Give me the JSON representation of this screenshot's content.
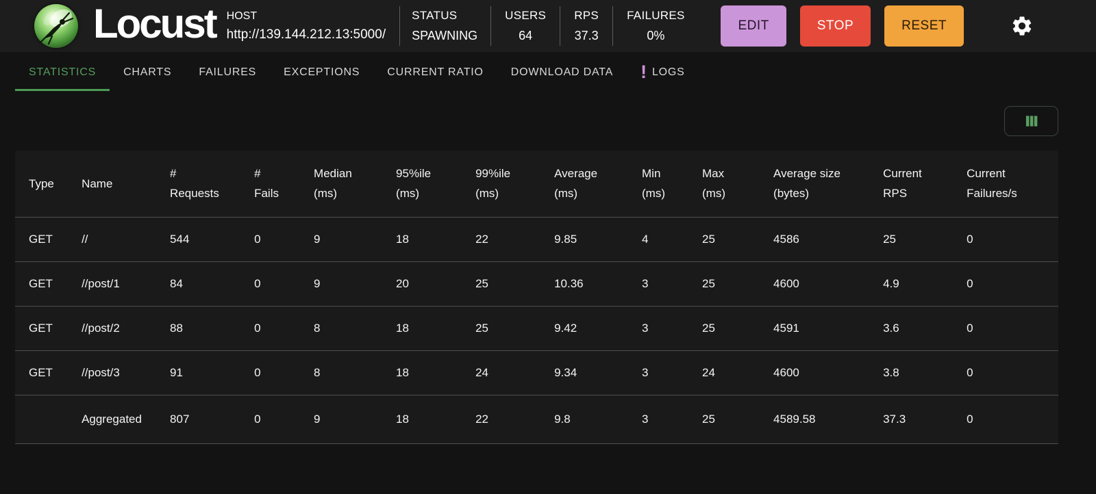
{
  "app": {
    "title": "Locust"
  },
  "header": {
    "host": {
      "label": "HOST",
      "value": "http://139.144.212.13:5000/"
    },
    "stats": [
      {
        "label": "STATUS",
        "value": "SPAWNING"
      },
      {
        "label": "USERS",
        "value": "64"
      },
      {
        "label": "RPS",
        "value": "37.3"
      },
      {
        "label": "FAILURES",
        "value": "0%"
      }
    ],
    "buttons": {
      "edit": "EDIT",
      "stop": "STOP",
      "reset": "RESET"
    }
  },
  "tabs": [
    {
      "label": "STATISTICS",
      "active": true
    },
    {
      "label": "CHARTS"
    },
    {
      "label": "FAILURES"
    },
    {
      "label": "EXCEPTIONS"
    },
    {
      "label": "CURRENT RATIO"
    },
    {
      "label": "DOWNLOAD DATA"
    },
    {
      "label": "LOGS",
      "badge": "!"
    }
  ],
  "colors": {
    "accent_green": "#569c5d",
    "edit_button": "#cb95d9",
    "stop_button": "#e64a3b",
    "reset_button": "#f1a33c",
    "logs_badge": "#ce93d8"
  },
  "table": {
    "columns": [
      [
        "Type"
      ],
      [
        "Name"
      ],
      [
        "#",
        "Requests"
      ],
      [
        "#",
        "Fails"
      ],
      [
        "Median",
        "(ms)"
      ],
      [
        "95%ile",
        "(ms)"
      ],
      [
        "99%ile",
        "(ms)"
      ],
      [
        "Average",
        "(ms)"
      ],
      [
        "Min",
        "(ms)"
      ],
      [
        "Max",
        "(ms)"
      ],
      [
        "Average size",
        "(bytes)"
      ],
      [
        "Current",
        "RPS"
      ],
      [
        "Current",
        "Failures/s"
      ]
    ],
    "rows": [
      [
        "GET",
        "//",
        "544",
        "0",
        "9",
        "18",
        "22",
        "9.85",
        "4",
        "25",
        "4586",
        "25",
        "0"
      ],
      [
        "GET",
        "//post/1",
        "84",
        "0",
        "9",
        "20",
        "25",
        "10.36",
        "3",
        "25",
        "4600",
        "4.9",
        "0"
      ],
      [
        "GET",
        "//post/2",
        "88",
        "0",
        "8",
        "18",
        "25",
        "9.42",
        "3",
        "25",
        "4591",
        "3.6",
        "0"
      ],
      [
        "GET",
        "//post/3",
        "91",
        "0",
        "8",
        "18",
        "24",
        "9.34",
        "3",
        "24",
        "4600",
        "3.8",
        "0"
      ]
    ],
    "aggregated": [
      "",
      "Aggregated",
      "807",
      "0",
      "9",
      "18",
      "22",
      "9.8",
      "3",
      "25",
      "4589.58",
      "37.3",
      "0"
    ]
  }
}
